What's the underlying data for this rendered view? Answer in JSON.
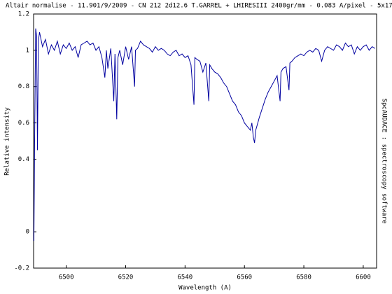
{
  "chart_data": {
    "type": "line",
    "title": "Altair normalise - 11.901/9/2009 - CN 212 2d12.6 T.GARREL + LHIRESIII 2400gr/mm - 0.083 A/pixel - 5x17",
    "x_label": "Wavelength (A)",
    "y_label": "Relative intensity",
    "side_note": "SpcAUDACE : spectroscopy software",
    "color": "#0000a0",
    "x": [
      6489.1,
      6489.4,
      6489.7,
      6490.0,
      6490.3,
      6490.6,
      6491,
      6492,
      6493,
      6494,
      6495,
      6496,
      6497,
      6498,
      6499,
      6500,
      6501,
      6502,
      6503,
      6504,
      6505,
      6506,
      6507,
      6508,
      6509,
      6510,
      6511,
      6512,
      6513,
      6513.5,
      6514,
      6515,
      6516,
      6516.4,
      6517,
      6517.4,
      6518,
      6519,
      6520,
      6521,
      6522,
      6523,
      6523.3,
      6524,
      6525,
      6526,
      6527,
      6528,
      6529,
      6530,
      6531,
      6532,
      6533,
      6534,
      6535,
      6536,
      6537,
      6538,
      6539,
      6540,
      6541,
      6542,
      6543,
      6543.3,
      6544,
      6545,
      6546,
      6547,
      6548,
      6548.3,
      6549,
      6550,
      6551,
      6552,
      6553,
      6554,
      6555,
      6556,
      6557,
      6558,
      6559,
      6560,
      6561,
      6562,
      6562.5,
      6563,
      6563.4,
      6563.8,
      6564.5,
      6565,
      6566,
      6567,
      6568,
      6569,
      6570,
      6571,
      6572,
      6572.3,
      6573,
      6574,
      6575,
      6575.3,
      6576,
      6577,
      6578,
      6579,
      6580,
      6581,
      6582,
      6583,
      6584,
      6585,
      6586,
      6587,
      6588,
      6589,
      6590,
      6591,
      6592,
      6593,
      6594,
      6595,
      6596,
      6597,
      6598,
      6599,
      6600,
      6601,
      6602,
      6603,
      6604
    ],
    "values": [
      -0.05,
      0.6,
      1.12,
      1.08,
      0.45,
      1.05,
      1.1,
      1.02,
      1.06,
      0.98,
      1.03,
      1.0,
      1.05,
      0.98,
      1.03,
      1.01,
      1.04,
      1.0,
      1.02,
      0.96,
      1.03,
      1.04,
      1.05,
      1.03,
      1.04,
      1.0,
      1.02,
      0.96,
      0.85,
      1.0,
      0.9,
      1.01,
      0.72,
      0.98,
      0.62,
      0.96,
      1.0,
      0.92,
      1.02,
      0.95,
      1.02,
      0.8,
      1.0,
      1.01,
      1.05,
      1.03,
      1.02,
      1.01,
      0.99,
      1.02,
      1.0,
      1.01,
      1.0,
      0.98,
      0.97,
      0.99,
      1.0,
      0.97,
      0.98,
      0.96,
      0.97,
      0.92,
      0.7,
      0.96,
      0.95,
      0.94,
      0.88,
      0.93,
      0.72,
      0.92,
      0.9,
      0.88,
      0.87,
      0.85,
      0.82,
      0.8,
      0.76,
      0.72,
      0.7,
      0.66,
      0.64,
      0.6,
      0.58,
      0.56,
      0.6,
      0.52,
      0.49,
      0.56,
      0.6,
      0.63,
      0.68,
      0.73,
      0.77,
      0.8,
      0.83,
      0.86,
      0.72,
      0.88,
      0.9,
      0.91,
      0.78,
      0.93,
      0.94,
      0.96,
      0.97,
      0.98,
      0.97,
      0.99,
      1.0,
      0.99,
      1.01,
      1.0,
      0.94,
      1.0,
      1.02,
      1.01,
      1.0,
      1.03,
      1.02,
      1.0,
      1.04,
      1.02,
      1.03,
      0.98,
      1.02,
      1.0,
      1.02,
      1.03,
      1.0,
      1.02,
      1.01
    ],
    "xlim": [
      6489,
      6604.5
    ],
    "ylim": [
      -0.2,
      1.2
    ],
    "xticks": [
      6500,
      6520,
      6540,
      6560,
      6580,
      6600
    ],
    "yticks": [
      1.2,
      1,
      0.8,
      0.6,
      0.4,
      0,
      -0.2
    ]
  }
}
